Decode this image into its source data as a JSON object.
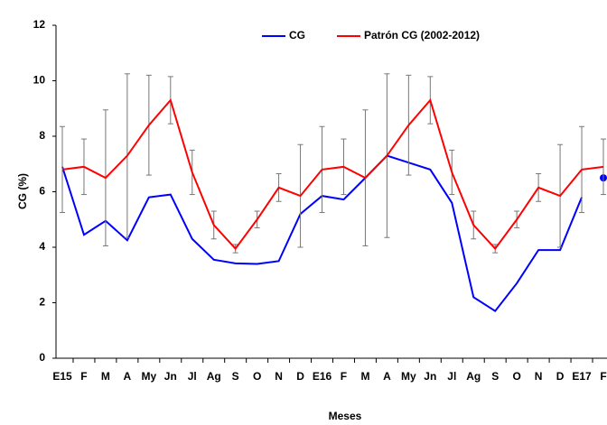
{
  "chart_data": {
    "type": "line",
    "x_label": "Meses",
    "y_label": "CG (%)",
    "categories": [
      "E15",
      "F",
      "M",
      "A",
      "My",
      "Jn",
      "Jl",
      "Ag",
      "S",
      "O",
      "N",
      "D",
      "E16",
      "F",
      "M",
      "A",
      "My",
      "Jn",
      "Jl",
      "Ag",
      "S",
      "O",
      "N",
      "D",
      "E17",
      "F"
    ],
    "series": [
      {
        "name": "CG",
        "color": "#0000ff",
        "values": [
          6.9,
          4.45,
          4.95,
          4.25,
          5.8,
          5.9,
          4.3,
          3.55,
          3.42,
          3.4,
          3.5,
          5.2,
          5.85,
          5.72,
          6.5,
          7.3,
          7.05,
          6.8,
          5.6,
          2.2,
          1.7,
          2.7,
          3.9,
          3.9,
          5.8,
          6.5
        ]
      },
      {
        "name": "Patrón CG (2002-2012)",
        "color": "#ff0000",
        "values": [
          6.8,
          6.9,
          6.5,
          7.3,
          8.4,
          9.3,
          6.7,
          4.8,
          3.95,
          5.0,
          6.15,
          5.85,
          6.8,
          6.9,
          6.5,
          7.3,
          8.4,
          9.3,
          6.7,
          4.8,
          3.95,
          5.0,
          6.15,
          5.85,
          6.8,
          6.9
        ],
        "errors": [
          1.55,
          1.0,
          2.45,
          2.95,
          1.8,
          0.85,
          0.8,
          0.5,
          0.15,
          0.3,
          0.5,
          1.85,
          1.55,
          1.0,
          2.45,
          2.95,
          1.8,
          0.85,
          0.8,
          0.5,
          0.15,
          0.3,
          0.5,
          1.85,
          1.55,
          1.0
        ]
      }
    ],
    "ylim": [
      0,
      12
    ],
    "yticks": [
      0,
      2,
      4,
      6,
      8,
      10,
      12
    ],
    "grid": false
  }
}
